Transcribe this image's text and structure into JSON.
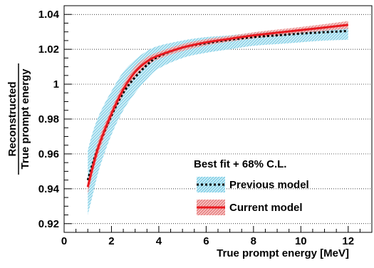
{
  "chart_data": {
    "type": "line",
    "xlabel": "True prompt energy [MeV]",
    "ylabel_numerator": "Reconstructed",
    "ylabel_denominator": "True prompt energy",
    "xlim": [
      0,
      13
    ],
    "ylim": [
      0.915,
      1.045
    ],
    "x_ticks": [
      0,
      2,
      4,
      6,
      8,
      10,
      12
    ],
    "x_tick_labels": [
      "0",
      "2",
      "4",
      "6",
      "8",
      "10",
      "12"
    ],
    "y_ticks": [
      0.92,
      0.94,
      0.96,
      0.98,
      1.0,
      1.02,
      1.04
    ],
    "y_tick_labels": [
      "0.92",
      "0.94",
      "0.96",
      "0.98",
      "1",
      "1.02",
      "1.04"
    ],
    "grid": "horizontal dotted",
    "legend": {
      "title": "Best fit + 68% C.L.",
      "placement": "bottom-right",
      "entries": [
        "Previous model",
        "Current model"
      ]
    },
    "series": [
      {
        "name": "Previous model",
        "line_color": "#000000",
        "band_color": "#7ecfe6",
        "x": [
          1.0,
          1.2,
          1.5,
          2.0,
          2.5,
          3.0,
          3.5,
          4.0,
          5.0,
          6.0,
          7.0,
          8.0,
          9.0,
          10.0,
          11.0,
          12.0
        ],
        "y": [
          0.945,
          0.954,
          0.966,
          0.982,
          0.995,
          1.004,
          1.011,
          1.016,
          1.021,
          1.0235,
          1.0255,
          1.027,
          1.028,
          1.029,
          1.0298,
          1.0305
        ],
        "y_low": [
          0.925,
          0.936,
          0.952,
          0.971,
          0.985,
          0.995,
          1.003,
          1.009,
          1.015,
          1.018,
          1.02,
          1.022,
          1.023,
          1.024,
          1.025,
          1.0255
        ],
        "y_high": [
          0.962,
          0.972,
          0.983,
          0.996,
          1.007,
          1.014,
          1.019,
          1.022,
          1.025,
          1.027,
          1.028,
          1.0295,
          1.0305,
          1.031,
          1.0318,
          1.0325
        ]
      },
      {
        "name": "Current model",
        "line_color": "#e8191f",
        "band_color": "#f08a8a",
        "x": [
          1.0,
          1.2,
          1.5,
          2.0,
          2.5,
          3.0,
          3.5,
          4.0,
          5.0,
          6.0,
          7.0,
          8.0,
          9.0,
          10.0,
          11.0,
          12.0
        ],
        "y": [
          0.941,
          0.952,
          0.966,
          0.983,
          0.997,
          1.007,
          1.013,
          1.0165,
          1.021,
          1.024,
          1.026,
          1.028,
          1.0295,
          1.031,
          1.0325,
          1.034
        ],
        "y_low": [
          0.937,
          0.948,
          0.962,
          0.98,
          0.994,
          1.004,
          1.0105,
          1.0145,
          1.019,
          1.0222,
          1.0244,
          1.0263,
          1.0277,
          1.0292,
          1.0306,
          1.0318
        ],
        "y_high": [
          0.945,
          0.956,
          0.97,
          0.986,
          1.0,
          1.01,
          1.0155,
          1.0185,
          1.023,
          1.0258,
          1.0276,
          1.0297,
          1.0313,
          1.0328,
          1.0344,
          1.0362
        ]
      }
    ]
  }
}
